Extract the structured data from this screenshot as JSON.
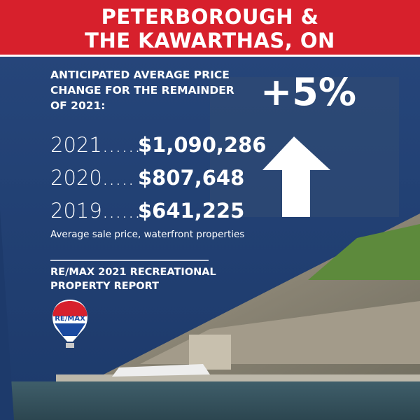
{
  "header": {
    "title_lines": [
      "PETERBOROUGH &",
      "THE KAWARTHAS, ON"
    ]
  },
  "forecast": {
    "label_lines": [
      "ANTICIPATED AVERAGE PRICE",
      "CHANGE FOR THE REMAINDER",
      "OF 2021:"
    ],
    "change": "+5%"
  },
  "prices": {
    "rows": [
      [
        "2021......",
        "$1,090,286"
      ],
      [
        "2020.....",
        "$807,648"
      ],
      [
        "2019......",
        "$641,225"
      ]
    ],
    "note": "Average sale price, waterfront properties"
  },
  "report": {
    "title_lines": [
      "RE/MAX 2021 RECREATIONAL",
      "PROPERTY REPORT"
    ],
    "logo": "RE/MAX"
  }
}
